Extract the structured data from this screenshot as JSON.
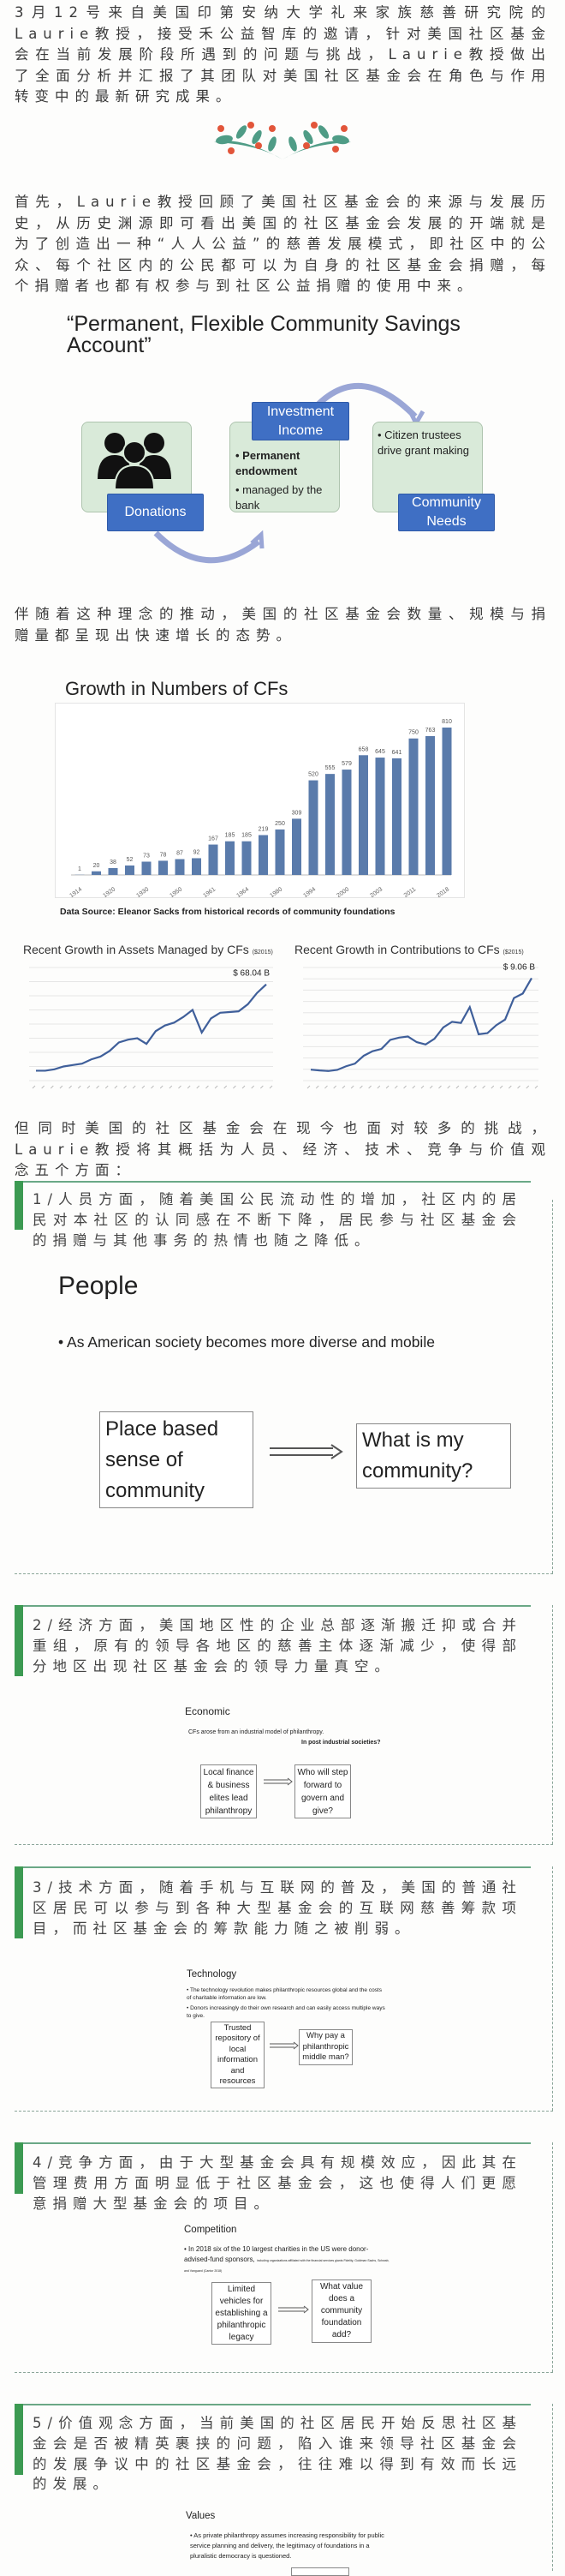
{
  "paragraphs": {
    "intro": "3月12号来自美国印第安纳大学礼来家族慈善研究院的Laurie教授，接受禾公益智库的邀请，针对美国社区基金会在当前发展阶段所遇到的问题与挑战，Laurie教授做出了全面分析并汇报了其团队对美国社区基金会在角色与作用转变中的最新研究成果。",
    "history": "首先，Laurie教授回顾了美国社区基金会的来源与发展历史，从历史渊源即可看出美国的社区基金会发展的开端就是为了创造出一种“人人公益”的慈善发展模式，即社区中的公众、每个社区内的公民都可以为自身的社区基金会捐赠，每个捐赠者也都有权参与到社区公益捐赠的使用中来。",
    "growth": "伴随着这种理念的推动，美国的社区基金会数量、规模与捐赠量都呈现出快速增长的态势。",
    "challenges": "但同时美国的社区基金会在现今也面对较多的挑战，Laurie教授将其概括为人员、经济、技术、竞争与价值观念五个方面："
  },
  "model_slide": {
    "title": "“Permanent, Flexible Community Savings Account”",
    "donations": "Donations",
    "investment": "Investment Income",
    "bullet_1": "Permanent endowment",
    "bullet_2": "managed by the bank",
    "bullet_3": "Citizen trustees drive grant making",
    "needs": "Community Needs"
  },
  "data_source": "Data Source: Eleanor Sacks from historical records of community foundations",
  "chart_data": [
    {
      "type": "bar",
      "title": "Growth in Numbers of CFs",
      "categories": [
        "1914",
        "",
        "1920",
        "",
        "1930",
        "",
        "1950",
        "",
        "1961",
        "",
        "1964",
        "",
        "1980",
        "",
        "1994",
        "",
        "2000",
        "",
        "2003",
        "",
        "2011",
        "",
        "2018"
      ],
      "values": [
        1,
        20,
        38,
        52,
        73,
        78,
        87,
        92,
        167,
        185,
        185,
        219,
        250,
        309,
        520,
        555,
        579,
        658,
        645,
        641,
        750,
        763,
        810
      ],
      "ylim": [
        0,
        850
      ],
      "grid": false,
      "color": "#5a7bab"
    },
    {
      "type": "line",
      "title": "Recent Growth in Assets Managed by CFs",
      "unit_note": "($2015)",
      "end_label": "$ 68.04 B",
      "values": [
        7,
        7,
        8,
        10,
        11,
        12,
        15,
        17,
        21,
        27,
        29,
        30,
        26,
        35,
        39,
        41,
        45,
        50,
        34,
        44,
        48,
        48.5,
        49,
        54,
        62,
        68.04
      ],
      "ylim": [
        0,
        80
      ],
      "grid": true,
      "color": "#3f5f9a"
    },
    {
      "type": "line",
      "title": "Recent Growth in Contributions to CFs",
      "unit_note": "($2015)",
      "end_label": "$ 9.06 B",
      "values": [
        0.97,
        0.9,
        0.85,
        0.95,
        1.27,
        1.5,
        2.2,
        2.6,
        2.8,
        3.6,
        3.8,
        3.9,
        3.4,
        3.2,
        3.7,
        4.7,
        5.2,
        5.1,
        6.5,
        4.1,
        4.2,
        4.9,
        5.4,
        7.3,
        7.7,
        9.06
      ],
      "ylim": [
        0,
        10
      ],
      "grid": true,
      "color": "#3f5f9a"
    }
  ],
  "sections": [
    {
      "text": "1/人员方面，随着美国公民流动性的增加，社区内的居民对本社区的认同感在不断下降，居民参与社区基金会的捐赠与其他事务的热情也随之降低。"
    },
    {
      "text": "2/经济方面，美国地区性的企业总部逐渐搬迁抑或合并重组，原有的领导各地区的慈善主体逐渐减少，使得部分地区出现社区基金会的领导力量真空。"
    },
    {
      "text": "3/技术方面，随着手机与互联网的普及，美国的普通社区居民可以参与到各种大型基金会的互联网慈善筹款项目，而社区基金会的筹款能力随之被削弱。"
    },
    {
      "text": "4/竞争方面，由于大型基金会具有规模效应，因此其在管理费用方面明显低于社区基金会，这也使得人们更愿意捐赠大型基金会的项目。"
    },
    {
      "text": "5/价值观念方面，当前美国的社区居民开始反思社区基金会是否被精英裹挟的问题，陷入谁来领导社区基金会的发展争议中的社区基金会，往往难以得到有效而长远的发展。"
    }
  ],
  "people_slide": {
    "title": "People",
    "bullet": "As American society becomes more diverse and mobile",
    "from": "Place based sense of community",
    "to": "What is my community?"
  },
  "economic_slide": {
    "title": "Economic",
    "line1": "CFs arose from an industrial model of philanthropy.",
    "line2": "In post industrial societies?",
    "from": "Local finance & business elites lead philanthropy",
    "to": "Who will step forward to govern and give?"
  },
  "technology_slide": {
    "title": "Technology",
    "bullet1": "The technology revolution makes philanthropic resources global and the costs of charitable information are low.",
    "bullet2": "Donors increasingly do their own research and can easily access multiple ways to give.",
    "from": "Trusted repository of local information and resources",
    "to": "Why pay a philanthropic middle man?"
  },
  "competition_slide": {
    "title": "Competition",
    "bullet": "In 2018 six of the 10 largest charities in the US were donor-advised-fund sponsors,",
    "small": "including organizations affiliated with the financial services giants Fidelity, Goldman Sachs, Schwab, and Vanguard (Cantor 2018)",
    "from": "Limited vehicles for establishing a philanthropic legacy",
    "to": "What value does a community foundation add?"
  },
  "values_slide": {
    "title": "Values",
    "bullet": "As private philanthropy assumes increasing responsibility for public service planning and delivery, the legitimacy of foundations in a pluralistic democracy is questioned."
  },
  "colors": {
    "accent_green": "#3c9a52",
    "diagram_blue": "#3f6fc4",
    "berry_red": "#e2553a",
    "leaf_teal": "#4f9c86"
  }
}
